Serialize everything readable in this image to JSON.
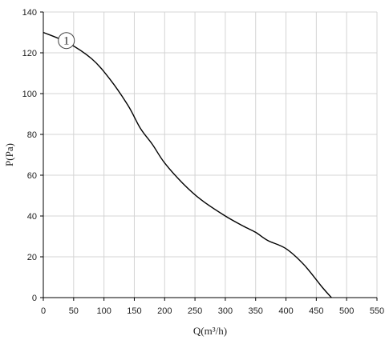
{
  "chart_data": {
    "type": "line",
    "xlabel": "Q(m³/h)",
    "ylabel": "P(Pa)",
    "xlim": [
      0,
      550
    ],
    "ylim": [
      0,
      140
    ],
    "xticks": [
      0,
      50,
      100,
      150,
      200,
      250,
      300,
      350,
      400,
      450,
      500,
      550
    ],
    "yticks": [
      0,
      20,
      40,
      60,
      80,
      100,
      120,
      140
    ],
    "grid": true,
    "series": [
      {
        "marker_label": "1",
        "x": [
          0,
          40,
          80,
          110,
          140,
          160,
          180,
          200,
          230,
          260,
          300,
          330,
          350,
          370,
          400,
          430,
          460,
          475
        ],
        "y": [
          130,
          125,
          117,
          107,
          94,
          83,
          75,
          66,
          56,
          48,
          40,
          35,
          32,
          28,
          24,
          16,
          5,
          0
        ]
      }
    ],
    "marker_position": {
      "x": 38,
      "y": 126
    }
  }
}
